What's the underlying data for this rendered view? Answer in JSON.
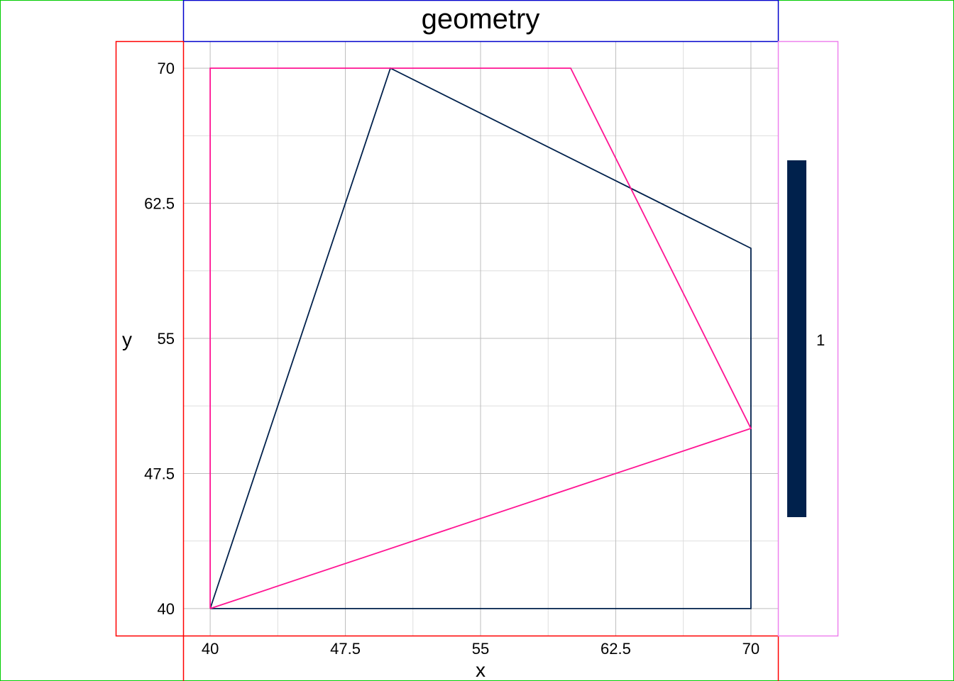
{
  "chart_data": {
    "type": "line",
    "title": "geometry",
    "xlabel": "x",
    "ylabel": "y",
    "xlim": [
      38.5,
      71.5
    ],
    "ylim": [
      38.5,
      71.5
    ],
    "xticks": [
      40,
      47.5,
      55,
      62.5,
      70
    ],
    "yticks": [
      40,
      47.5,
      55,
      62.5,
      70
    ],
    "xtick_labels": [
      "40",
      "47.5",
      "55",
      "62.5",
      "70"
    ],
    "ytick_labels": [
      "40",
      "47.5",
      "55",
      "62.5",
      "70"
    ],
    "minor_grid": [
      43.75,
      51.25,
      58.75,
      66.25
    ],
    "grid": true,
    "series": [
      {
        "color": "#00214c",
        "points": [
          [
            40,
            40
          ],
          [
            50,
            70
          ],
          [
            70,
            60
          ],
          [
            70,
            40
          ],
          [
            40,
            40
          ]
        ]
      },
      {
        "color": "#ff1493",
        "points": [
          [
            40,
            40
          ],
          [
            40,
            70
          ],
          [
            60,
            70
          ],
          [
            70,
            50
          ],
          [
            40,
            40
          ]
        ]
      }
    ],
    "legend": {
      "position": "right",
      "label": "1",
      "color": "#00214c"
    }
  },
  "debug_box_colors": {
    "outer": "#00cc00",
    "title": "#0000cc",
    "axis": "#ff0000",
    "legend": "#ee82ee"
  },
  "grid_colors": {
    "major": "#bebebe",
    "minor": "#dedede"
  }
}
